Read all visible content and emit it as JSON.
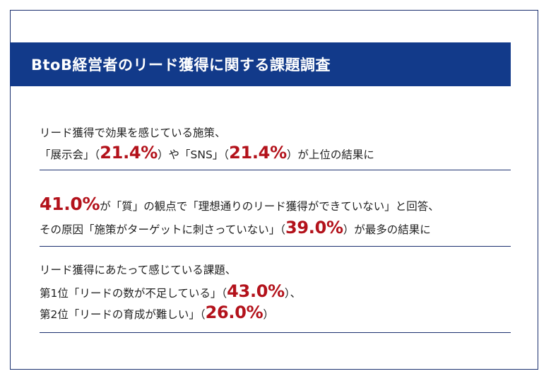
{
  "title": "BtoB経営者のリード獲得に関する課題調査",
  "section1": {
    "line1": "リード獲得で効果を感じている施策、",
    "line2_a": "「展示会」（",
    "line2_hl1": "21.4%",
    "line2_b": "）や「SNS」（",
    "line2_hl2": "21.4%",
    "line2_c": "）が上位の結果に"
  },
  "section2": {
    "line1_hl": "41.0%",
    "line1_text": "が「質」の観点で「理想通りのリード獲得ができていない」と回答、",
    "line2_a": "その原因「施策がターゲットに刺さっていない」（",
    "line2_hl": "39.0%",
    "line2_b": "）が最多の結果に"
  },
  "section3": {
    "line1": "リード獲得にあたって感じている課題、",
    "line2_a": "第1位「リードの数が不足している」（",
    "line2_hl": "43.0%",
    "line2_b": "）、",
    "line3_a": "第2位「リードの育成が難しい」（",
    "line3_hl": "26.0%",
    "line3_b": "）"
  },
  "colors": {
    "header_bg": "#123a8a",
    "highlight": "#b3121b",
    "rule": "#1a2f6e"
  }
}
